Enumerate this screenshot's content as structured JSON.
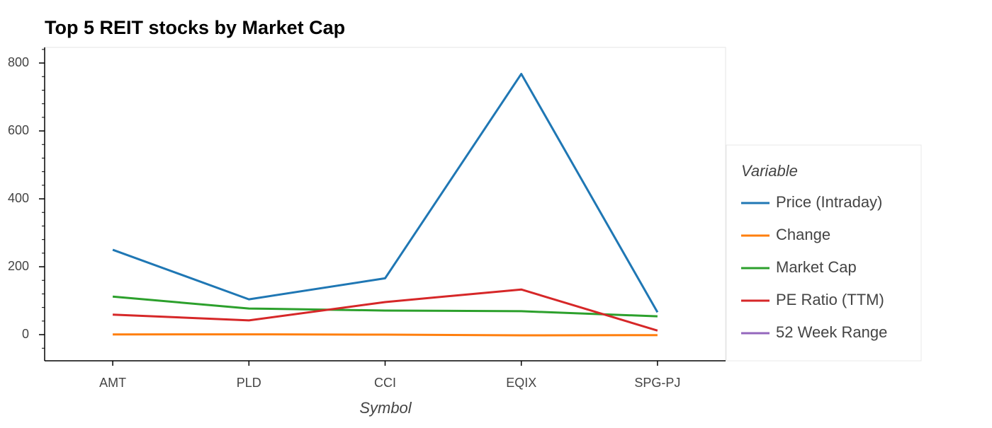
{
  "chart_data": {
    "type": "line",
    "title": "Top 5 REIT stocks by Market Cap",
    "x_label": "Symbol",
    "legend_title": "Variable",
    "categories": [
      "AMT",
      "PLD",
      "CCI",
      "EQIX",
      "SPG-PJ"
    ],
    "series": [
      {
        "name": "Price (Intraday)",
        "color": "#1f77b4",
        "values": [
          250,
          104,
          166,
          768,
          66
        ]
      },
      {
        "name": "Change",
        "color": "#ff7f0e",
        "values": [
          0.5,
          1,
          0,
          -2,
          -1.5
        ]
      },
      {
        "name": "Market Cap",
        "color": "#2ca02c",
        "values": [
          112,
          77,
          71,
          69,
          54
        ]
      },
      {
        "name": "PE Ratio (TTM)",
        "color": "#d62728",
        "values": [
          59,
          42,
          96,
          133,
          12
        ]
      },
      {
        "name": "52 Week Range",
        "color": "#9467bd",
        "values": [
          null,
          null,
          null,
          null,
          null
        ]
      }
    ],
    "ylim": [
      -77,
      846
    ],
    "yticks": [
      0,
      200,
      400,
      600,
      800
    ],
    "grid": false,
    "legend": "right"
  }
}
